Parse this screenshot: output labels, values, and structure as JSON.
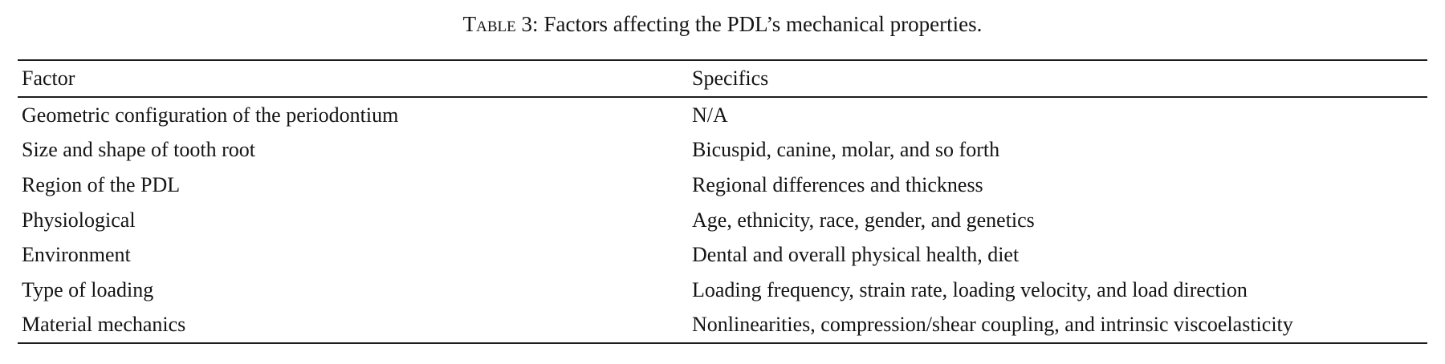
{
  "page": {
    "background": "#ffffff",
    "text_color": "#141414",
    "rule_color": "#1c1c1c"
  },
  "caption": {
    "label": "Table 3:",
    "text": "Factors affecting the PDL’s mechanical properties."
  },
  "table": {
    "columns": [
      "Factor",
      "Specifics"
    ],
    "rows": [
      {
        "factor": "Geometric configuration of the periodontium",
        "specifics": "N/A"
      },
      {
        "factor": "Size and shape of tooth root",
        "specifics": "Bicuspid, canine, molar, and so forth"
      },
      {
        "factor": "Region of the PDL",
        "specifics": "Regional differences and thickness"
      },
      {
        "factor": "Physiological",
        "specifics": "Age, ethnicity, race, gender, and genetics"
      },
      {
        "factor": "Environment",
        "specifics": "Dental and overall physical health, diet"
      },
      {
        "factor": "Type of loading",
        "specifics": "Loading frequency, strain rate, loading velocity, and load direction"
      },
      {
        "factor": "Material mechanics",
        "specifics": "Nonlinearities, compression/shear coupling, and intrinsic viscoelasticity"
      }
    ]
  }
}
